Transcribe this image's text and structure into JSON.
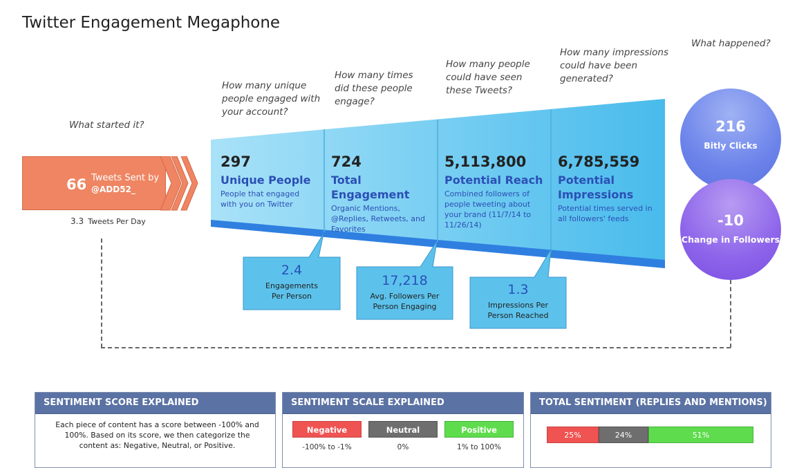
{
  "title": "Twitter Engagement Megaphone",
  "questions": {
    "started": "What started it?",
    "unique": "How many unique people engaged with your account?",
    "times": "How many times did these people engage?",
    "seen": "How many people could have seen these Tweets?",
    "impressions": "How many impressions could have been generated?",
    "happened": "What happened?"
  },
  "tweets": {
    "count": "66",
    "label": "Tweets Sent by",
    "handle": "@ADD52_",
    "per_day_value": "3.3",
    "per_day_label": "Tweets Per Day"
  },
  "metrics": [
    {
      "number": "297",
      "label": "Unique People",
      "desc": "People that engaged with you on Twitter"
    },
    {
      "number": "724",
      "label": "Total Engagement",
      "desc": "Organic Mentions, @Replies, Retweets, and Favorites"
    },
    {
      "number": "5,113,800",
      "label": "Potential Reach",
      "desc": "Combined followers of people tweeting about your brand (11/7/14 to 11/26/14)"
    },
    {
      "number": "6,785,559",
      "label": "Potential Impressions",
      "desc": "Potential times served in all followers' feeds"
    }
  ],
  "callouts": [
    {
      "number": "2.4",
      "label": "Engagements Per Person"
    },
    {
      "number": "17,218",
      "label": "Avg. Followers Per Person Engaging"
    },
    {
      "number": "1.3",
      "label": "Impressions Per Person Reached"
    }
  ],
  "results": {
    "clicks_number": "216",
    "clicks_label": "Bitly Clicks",
    "followers_number": "-10",
    "followers_label": "Change in Followers"
  },
  "panels": {
    "score": {
      "title": "SENTIMENT SCORE EXPLAINED",
      "text": "Each piece of content has a score between -100% and 100%. Based on its score, we then categorize the content as: Negative, Neutral, or Positive."
    },
    "scale": {
      "title": "SENTIMENT SCALE EXPLAINED",
      "negative": "Negative",
      "negative_range": "-100% to -1%",
      "neutral": "Neutral",
      "neutral_range": "0%",
      "positive": "Positive",
      "positive_range": "1% to 100%"
    },
    "total": {
      "title": "TOTAL SENTIMENT (REPLIES AND MENTIONS)",
      "negative": "25%",
      "neutral": "24%",
      "positive": "51%",
      "negative_value": 25,
      "neutral_value": 24,
      "positive_value": 51
    }
  },
  "colors": {
    "negative": "#ef5352",
    "neutral": "#6e6e6e",
    "positive": "#5fdc4d",
    "tweets": "#ef8562",
    "funnel": "#5fc3ee",
    "accent": "#2b4fb5",
    "panel_header": "#5b72a4"
  }
}
